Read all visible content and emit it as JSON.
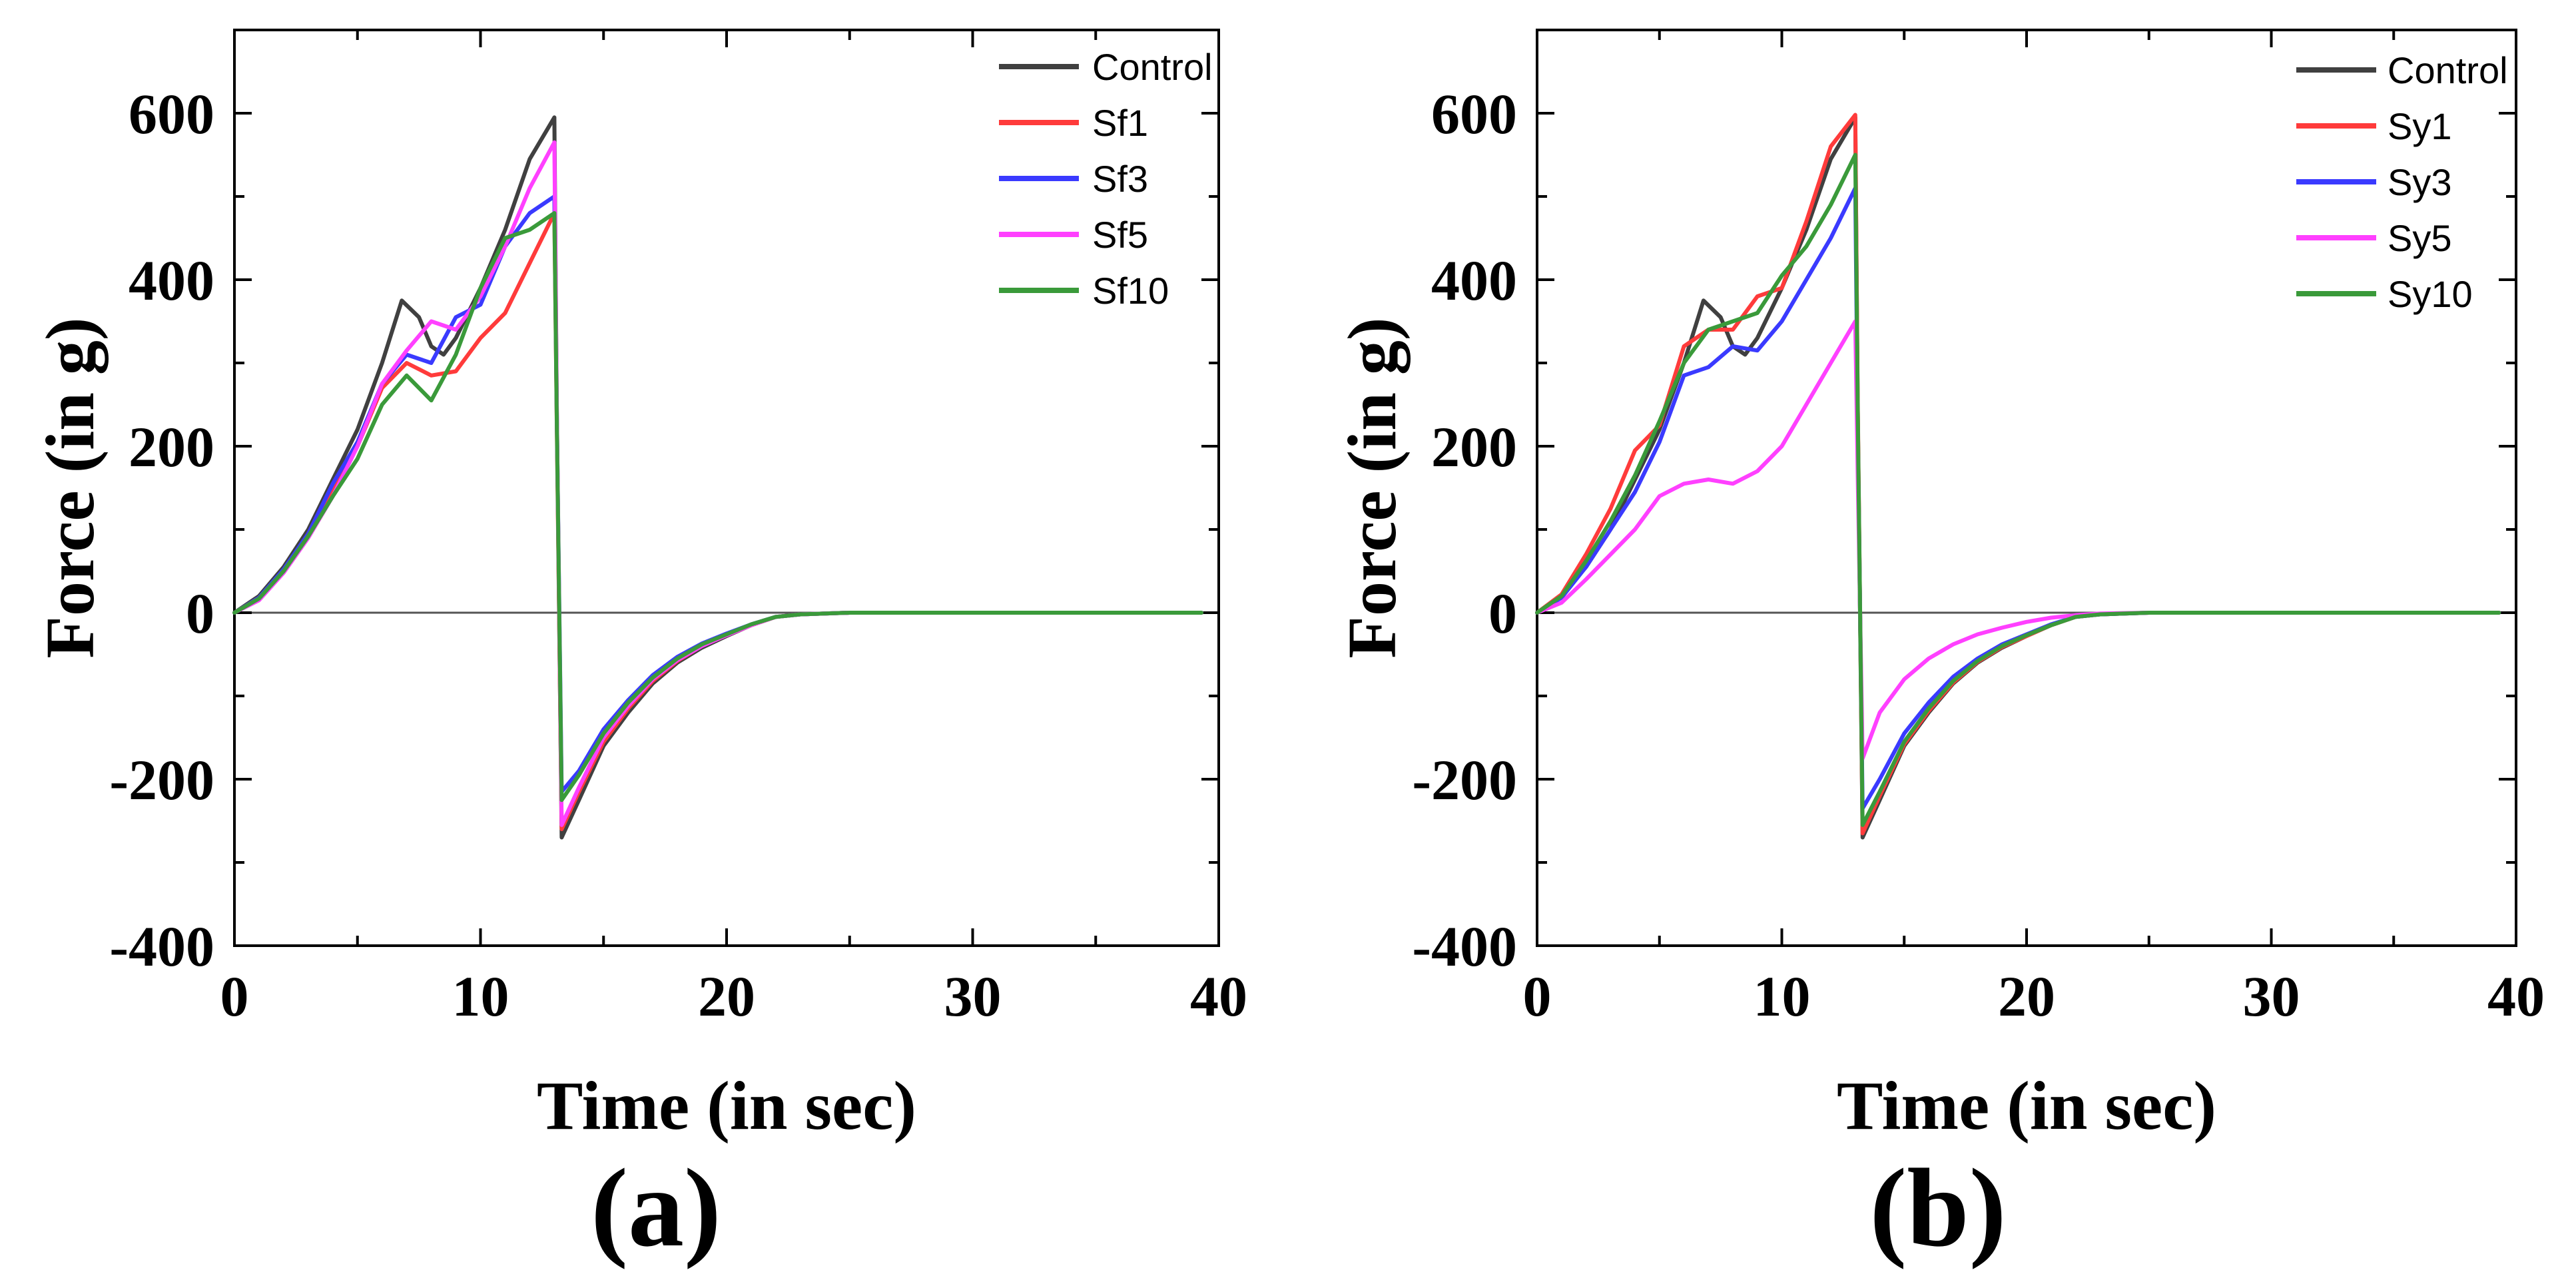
{
  "chart_data": [
    {
      "type": "line",
      "panel_label": "(a)",
      "xlabel": "Time (in sec)",
      "ylabel": "Force (in g)",
      "xlim": [
        0,
        40
      ],
      "ylim": [
        -400,
        700
      ],
      "xticks": [
        0,
        10,
        20,
        30,
        40
      ],
      "yticks": [
        -400,
        -200,
        0,
        200,
        400,
        600
      ],
      "legend_position": "top-right",
      "series": [
        {
          "name": "Control",
          "color": "#404040",
          "x": [
            0,
            1,
            2,
            3,
            4,
            5,
            6,
            6.8,
            7.5,
            8,
            8.5,
            9,
            10,
            11,
            12,
            13,
            13.1,
            13.3,
            14,
            15,
            16,
            17,
            18,
            19,
            20,
            21,
            22,
            23,
            25,
            30,
            35,
            39.3
          ],
          "y": [
            0,
            20,
            55,
            100,
            160,
            220,
            300,
            375,
            355,
            320,
            310,
            330,
            390,
            460,
            545,
            595,
            250,
            -270,
            -225,
            -160,
            -120,
            -85,
            -60,
            -42,
            -28,
            -15,
            -5,
            -2,
            0,
            0,
            0,
            0
          ]
        },
        {
          "name": "Sf1",
          "color": "#ff3b3b",
          "x": [
            0,
            1,
            2,
            3,
            4,
            5,
            6,
            7,
            8,
            9,
            10,
            11,
            12,
            13,
            13.1,
            13.3,
            14,
            15,
            16,
            17,
            18,
            19,
            20,
            21,
            22,
            23,
            25,
            30,
            35,
            39.3
          ],
          "y": [
            0,
            18,
            50,
            95,
            150,
            200,
            270,
            300,
            285,
            290,
            330,
            360,
            420,
            480,
            230,
            -260,
            -215,
            -155,
            -115,
            -82,
            -58,
            -40,
            -27,
            -15,
            -5,
            -2,
            0,
            0,
            0,
            0
          ]
        },
        {
          "name": "Sf3",
          "color": "#3a3aff",
          "x": [
            0,
            1,
            2,
            3,
            4,
            5,
            6,
            7,
            8,
            9,
            10,
            11,
            12,
            13,
            13.1,
            13.3,
            14,
            15,
            16,
            17,
            18,
            19,
            20,
            21,
            22,
            23,
            25,
            30,
            35,
            39.3
          ],
          "y": [
            0,
            18,
            52,
            95,
            155,
            205,
            275,
            310,
            300,
            355,
            370,
            440,
            480,
            500,
            240,
            -215,
            -190,
            -140,
            -105,
            -75,
            -53,
            -37,
            -25,
            -14,
            -5,
            -2,
            0,
            0,
            0,
            0
          ]
        },
        {
          "name": "Sf5",
          "color": "#ff40ff",
          "x": [
            0,
            1,
            2,
            3,
            4,
            5,
            6,
            7,
            8,
            9,
            10,
            11,
            12,
            13,
            13.1,
            13.3,
            14,
            15,
            16,
            17,
            18,
            19,
            20,
            21,
            22,
            23,
            25,
            30,
            35,
            39.3
          ],
          "y": [
            0,
            15,
            48,
            90,
            140,
            200,
            275,
            315,
            350,
            340,
            380,
            440,
            510,
            565,
            250,
            -255,
            -210,
            -150,
            -112,
            -80,
            -57,
            -40,
            -27,
            -15,
            -5,
            -2,
            0,
            0,
            0,
            0
          ]
        },
        {
          "name": "Sf10",
          "color": "#3a9a3a",
          "x": [
            0,
            1,
            2,
            3,
            4,
            5,
            6,
            7,
            7.5,
            8,
            9,
            10,
            11,
            12,
            13,
            13.1,
            13.3,
            14,
            15,
            16,
            17,
            18,
            19,
            20,
            21,
            22,
            23,
            25,
            30,
            35,
            39.3
          ],
          "y": [
            0,
            17,
            50,
            92,
            140,
            185,
            250,
            285,
            270,
            255,
            310,
            390,
            450,
            460,
            480,
            235,
            -225,
            -195,
            -145,
            -108,
            -78,
            -55,
            -38,
            -26,
            -14,
            -5,
            -2,
            0,
            0,
            0,
            0
          ]
        }
      ]
    },
    {
      "type": "line",
      "panel_label": "(b)",
      "xlabel": "Time (in sec)",
      "ylabel": "Force (in g)",
      "xlim": [
        0,
        40
      ],
      "ylim": [
        -400,
        700
      ],
      "xticks": [
        0,
        10,
        20,
        30,
        40
      ],
      "yticks": [
        -400,
        -200,
        0,
        200,
        400,
        600
      ],
      "legend_position": "top-right",
      "series": [
        {
          "name": "Control",
          "color": "#404040",
          "x": [
            0,
            1,
            2,
            3,
            4,
            5,
            6,
            6.8,
            7.5,
            8,
            8.5,
            9,
            10,
            11,
            12,
            13,
            13.1,
            13.3,
            14,
            15,
            16,
            17,
            18,
            19,
            20,
            21,
            22,
            23,
            25,
            30,
            35,
            39.3
          ],
          "y": [
            0,
            20,
            55,
            100,
            160,
            220,
            300,
            375,
            355,
            320,
            310,
            330,
            390,
            460,
            545,
            595,
            250,
            -270,
            -225,
            -160,
            -120,
            -85,
            -60,
            -42,
            -28,
            -15,
            -5,
            -2,
            0,
            0,
            0,
            0
          ]
        },
        {
          "name": "Sy1",
          "color": "#ff3b3b",
          "x": [
            0,
            1,
            2,
            3,
            4,
            5,
            6,
            7,
            8,
            9,
            10,
            11,
            12,
            13,
            13.1,
            13.3,
            14,
            15,
            16,
            17,
            18,
            19,
            20,
            21,
            22,
            23,
            25,
            30,
            35,
            39.3
          ],
          "y": [
            0,
            22,
            70,
            125,
            195,
            225,
            320,
            340,
            340,
            380,
            390,
            470,
            560,
            598,
            260,
            -265,
            -220,
            -158,
            -118,
            -84,
            -59,
            -41,
            -28,
            -15,
            -5,
            -2,
            0,
            0,
            0,
            0
          ]
        },
        {
          "name": "Sy3",
          "color": "#3a3aff",
          "x": [
            0,
            1,
            2,
            3,
            4,
            5,
            6,
            7,
            8,
            9,
            10,
            11,
            12,
            13,
            13.1,
            13.3,
            14,
            15,
            16,
            17,
            18,
            19,
            20,
            21,
            22,
            23,
            25,
            30,
            35,
            39.3
          ],
          "y": [
            0,
            18,
            55,
            100,
            145,
            205,
            285,
            295,
            320,
            315,
            350,
            400,
            450,
            510,
            230,
            -235,
            -200,
            -145,
            -108,
            -77,
            -55,
            -38,
            -26,
            -14,
            -5,
            -2,
            0,
            0,
            0,
            0
          ]
        },
        {
          "name": "Sy5",
          "color": "#ff40ff",
          "x": [
            0,
            1,
            2,
            3,
            4,
            5,
            6,
            7,
            8,
            9,
            10,
            11,
            12,
            13,
            13.1,
            13.3,
            14,
            15,
            16,
            17,
            18,
            19,
            20,
            21,
            22,
            23,
            25,
            30,
            35,
            39.3
          ],
          "y": [
            0,
            12,
            40,
            70,
            100,
            140,
            155,
            160,
            155,
            170,
            200,
            250,
            300,
            350,
            170,
            -175,
            -120,
            -80,
            -55,
            -38,
            -26,
            -18,
            -11,
            -6,
            -3,
            -1,
            0,
            0,
            0,
            0
          ]
        },
        {
          "name": "Sy10",
          "color": "#3a9a3a",
          "x": [
            0,
            1,
            2,
            3,
            4,
            5,
            6,
            7,
            8,
            9,
            10,
            11,
            12,
            13,
            13.1,
            13.3,
            14,
            15,
            16,
            17,
            18,
            19,
            20,
            21,
            22,
            23,
            25,
            30,
            35,
            39.3
          ],
          "y": [
            0,
            20,
            62,
            110,
            165,
            230,
            300,
            340,
            350,
            360,
            405,
            440,
            490,
            550,
            250,
            -255,
            -215,
            -155,
            -115,
            -82,
            -58,
            -40,
            -27,
            -15,
            -5,
            -2,
            0,
            0,
            0,
            0
          ]
        }
      ]
    }
  ]
}
